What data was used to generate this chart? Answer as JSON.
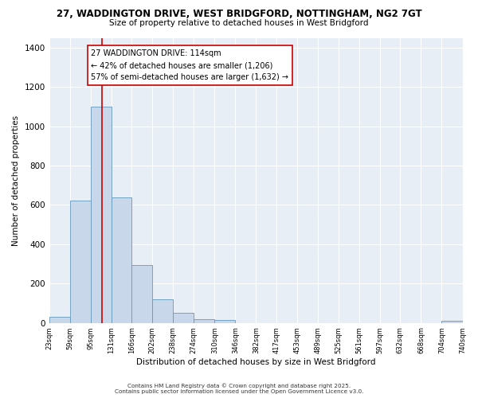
{
  "title_line1": "27, WADDINGTON DRIVE, WEST BRIDGFORD, NOTTINGHAM, NG2 7GT",
  "title_line2": "Size of property relative to detached houses in West Bridgford",
  "xlabel": "Distribution of detached houses by size in West Bridgford",
  "ylabel": "Number of detached properties",
  "bin_edges": [
    23,
    59,
    95,
    131,
    166,
    202,
    238,
    274,
    310,
    346,
    382,
    417,
    453,
    489,
    525,
    561,
    597,
    632,
    668,
    704,
    740
  ],
  "bin_counts": [
    30,
    620,
    1100,
    640,
    295,
    120,
    50,
    20,
    15,
    0,
    0,
    0,
    0,
    0,
    0,
    0,
    0,
    0,
    0,
    10
  ],
  "bar_color": "#c8d8ea",
  "bar_edge_color": "#6699bb",
  "vline_x": 114,
  "vline_color": "#cc0000",
  "annotation_text": "27 WADDINGTON DRIVE: 114sqm\n← 42% of detached houses are smaller (1,206)\n57% of semi-detached houses are larger (1,632) →",
  "annotation_box_color": "#ffffff",
  "annotation_box_edge": "#cc0000",
  "ylim": [
    0,
    1450
  ],
  "yticks": [
    0,
    200,
    400,
    600,
    800,
    1000,
    1200,
    1400
  ],
  "tick_labels": [
    "23sqm",
    "59sqm",
    "95sqm",
    "131sqm",
    "166sqm",
    "202sqm",
    "238sqm",
    "274sqm",
    "310sqm",
    "346sqm",
    "382sqm",
    "417sqm",
    "453sqm",
    "489sqm",
    "525sqm",
    "561sqm",
    "597sqm",
    "632sqm",
    "668sqm",
    "704sqm",
    "740sqm"
  ],
  "footer_line1": "Contains HM Land Registry data © Crown copyright and database right 2025.",
  "footer_line2": "Contains public sector information licensed under the Open Government Licence v3.0.",
  "bg_color": "#ffffff",
  "plot_bg_color": "#e8eef5",
  "grid_color": "#ffffff"
}
